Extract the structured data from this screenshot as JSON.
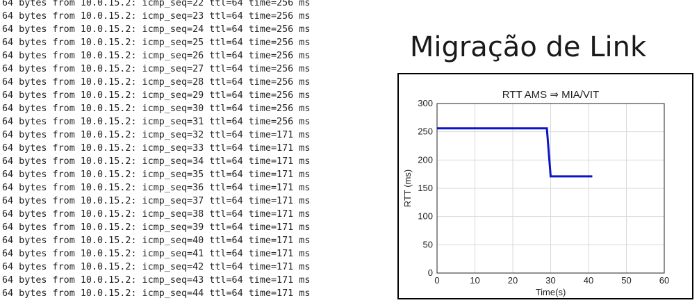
{
  "terminal": {
    "lines": [
      "64 bytes from 10.0.15.2: icmp_seq=22 ttl=64 time=256 ms",
      "64 bytes from 10.0.15.2: icmp_seq=23 ttl=64 time=256 ms",
      "64 bytes from 10.0.15.2: icmp_seq=24 ttl=64 time=256 ms",
      "64 bytes from 10.0.15.2: icmp_seq=25 ttl=64 time=256 ms",
      "64 bytes from 10.0.15.2: icmp_seq=26 ttl=64 time=256 ms",
      "64 bytes from 10.0.15.2: icmp_seq=27 ttl=64 time=256 ms",
      "64 bytes from 10.0.15.2: icmp_seq=28 ttl=64 time=256 ms",
      "64 bytes from 10.0.15.2: icmp_seq=29 ttl=64 time=256 ms",
      "64 bytes from 10.0.15.2: icmp_seq=30 ttl=64 time=256 ms",
      "64 bytes from 10.0.15.2: icmp_seq=31 ttl=64 time=256 ms",
      "64 bytes from 10.0.15.2: icmp_seq=32 ttl=64 time=171 ms",
      "64 bytes from 10.0.15.2: icmp_seq=33 ttl=64 time=171 ms",
      "64 bytes from 10.0.15.2: icmp_seq=34 ttl=64 time=171 ms",
      "64 bytes from 10.0.15.2: icmp_seq=35 ttl=64 time=171 ms",
      "64 bytes from 10.0.15.2: icmp_seq=36 ttl=64 time=171 ms",
      "64 bytes from 10.0.15.2: icmp_seq=37 ttl=64 time=171 ms",
      "64 bytes from 10.0.15.2: icmp_seq=38 ttl=64 time=171 ms",
      "64 bytes from 10.0.15.2: icmp_seq=39 ttl=64 time=171 ms",
      "64 bytes from 10.0.15.2: icmp_seq=40 ttl=64 time=171 ms",
      "64 bytes from 10.0.15.2: icmp_seq=41 ttl=64 time=171 ms",
      "64 bytes from 10.0.15.2: icmp_seq=42 ttl=64 time=171 ms",
      "64 bytes from 10.0.15.2: icmp_seq=43 ttl=64 time=171 ms",
      "64 bytes from 10.0.15.2: icmp_seq=44 ttl=64 time=171 ms"
    ]
  },
  "slide": {
    "title": "Migração de Link"
  },
  "chart_data": {
    "type": "line",
    "title": "RTT AMS ⇒ MIA/VIT",
    "xlabel": "Time(s)",
    "ylabel": "RTT (ms)",
    "xlim": [
      0,
      60
    ],
    "ylim": [
      0,
      300
    ],
    "xticks": [
      0,
      10,
      20,
      30,
      40,
      50,
      60
    ],
    "yticks": [
      0,
      50,
      100,
      150,
      200,
      250,
      300
    ],
    "grid": true,
    "series": [
      {
        "color": "#0a14c8",
        "x": [
          0,
          29,
          30,
          41
        ],
        "y": [
          256,
          256,
          171,
          171
        ]
      }
    ]
  }
}
